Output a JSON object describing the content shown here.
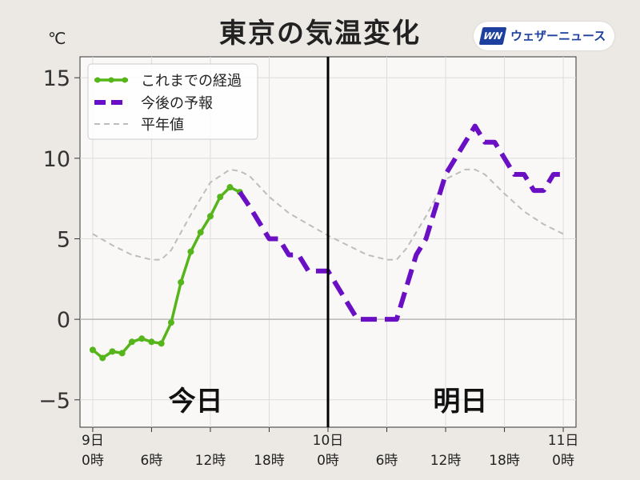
{
  "header": {
    "title": "東京の気温変化",
    "logo_mark": "WN",
    "logo_text": "ウェザーニュース",
    "unit": "℃"
  },
  "chart_data": {
    "type": "line",
    "title": "東京の気温変化",
    "ylabel": "℃",
    "xlabel": "",
    "ylim": [
      -6.7,
      16.3
    ],
    "xlim": [
      -1.3,
      49.3
    ],
    "grid": true,
    "legend_position": "top-left",
    "x_ticks": [
      {
        "x": 0,
        "line1": "9日",
        "line2": "0時"
      },
      {
        "x": 6,
        "line1": "",
        "line2": "6時"
      },
      {
        "x": 12,
        "line1": "",
        "line2": "12時"
      },
      {
        "x": 18,
        "line1": "",
        "line2": "18時"
      },
      {
        "x": 24,
        "line1": "10日",
        "line2": "0時"
      },
      {
        "x": 30,
        "line1": "",
        "line2": "6時"
      },
      {
        "x": 36,
        "line1": "",
        "line2": "12時"
      },
      {
        "x": 42,
        "line1": "",
        "line2": "18時"
      },
      {
        "x": 48,
        "line1": "11日",
        "line2": "0時"
      }
    ],
    "y_ticks": [
      -5,
      0,
      5,
      10,
      15
    ],
    "y_tick_labels": [
      "−5",
      "0",
      "5",
      "10",
      "15"
    ],
    "day_labels": [
      {
        "text": "今日",
        "x": 10.5,
        "y": -5
      },
      {
        "text": "明日",
        "x": 37.5,
        "y": -5
      }
    ],
    "divider_x": 24,
    "series": [
      {
        "name": "これまでの経過",
        "color": "#55b51a",
        "style": "solid-markers",
        "x": [
          0,
          1,
          2,
          3,
          4,
          5,
          6,
          7,
          8,
          9,
          10,
          11,
          12,
          13,
          14,
          15
        ],
        "y": [
          -1.9,
          -2.4,
          -2.0,
          -2.1,
          -1.4,
          -1.2,
          -1.4,
          -1.5,
          -0.2,
          2.3,
          4.2,
          5.4,
          6.4,
          7.6,
          8.2,
          7.9
        ]
      },
      {
        "name": "今後の予報",
        "color": "#6a0fc4",
        "style": "dashed-thick",
        "x": [
          15,
          16,
          17,
          18,
          19,
          20,
          21,
          22,
          23,
          24,
          25,
          26,
          27,
          28,
          29,
          30,
          31,
          32,
          33,
          34,
          35,
          36,
          37,
          38,
          39,
          40,
          41,
          42,
          43,
          44,
          45,
          46,
          47,
          48
        ],
        "y": [
          7.9,
          7.0,
          6.0,
          5.0,
          5.0,
          4.0,
          4.0,
          3.0,
          3.0,
          3.0,
          2.0,
          1.0,
          0.0,
          0.0,
          0.0,
          0.0,
          0.0,
          2.0,
          4.0,
          5.0,
          7.0,
          9.0,
          10.0,
          11.0,
          12.0,
          11.0,
          11.0,
          10.0,
          9.0,
          9.0,
          8.0,
          8.0,
          9.0,
          9.0
        ]
      },
      {
        "name": "平年値",
        "color": "#bdbdbd",
        "style": "dashed-thin",
        "x": [
          0,
          2,
          4,
          6,
          7,
          8,
          10,
          12,
          14,
          15,
          16,
          18,
          20,
          22,
          24,
          26,
          28,
          30,
          31,
          32,
          34,
          36,
          38,
          39,
          40,
          42,
          44,
          46,
          48
        ],
        "y": [
          5.3,
          4.6,
          4.0,
          3.7,
          3.7,
          4.3,
          6.5,
          8.5,
          9.3,
          9.2,
          8.9,
          7.6,
          6.6,
          5.9,
          5.2,
          4.6,
          4.0,
          3.7,
          3.7,
          4.4,
          6.4,
          8.7,
          9.3,
          9.3,
          9.0,
          7.8,
          6.7,
          5.9,
          5.3
        ]
      }
    ]
  }
}
